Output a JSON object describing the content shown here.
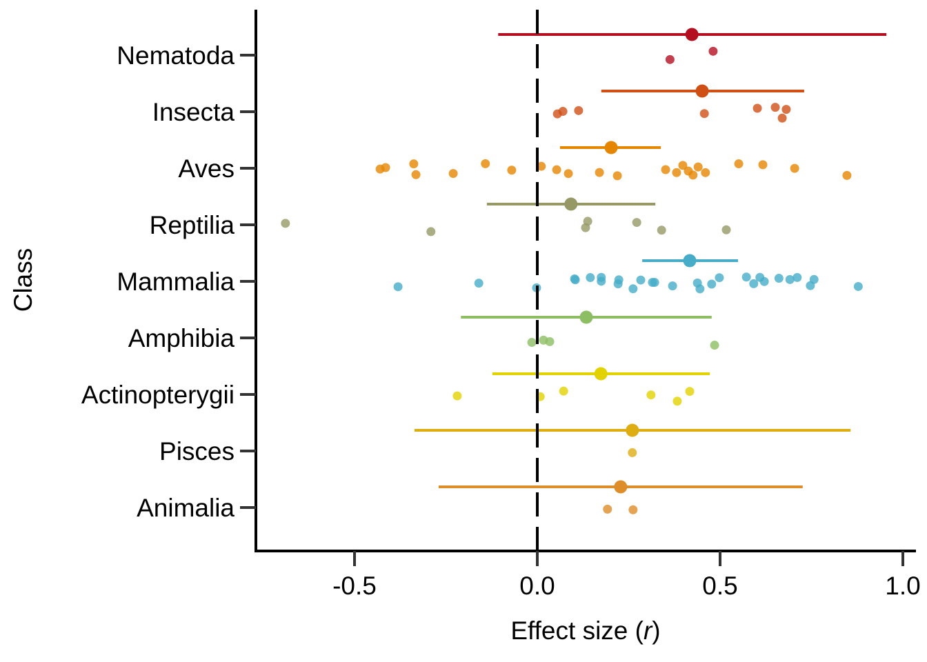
{
  "chart_data": {
    "type": "scatter",
    "subtype": "forest-plot-with-jittered-points",
    "title": "",
    "xlabel_prefix": "Effect size (",
    "xlabel_italic": "r",
    "xlabel_suffix": ")",
    "ylabel": "Class",
    "xlim": [
      -0.8,
      1.04
    ],
    "xticks": [
      -0.5,
      0.0,
      0.5,
      1.0
    ],
    "xtick_labels": [
      "-0.5",
      "0.0",
      "0.5",
      "1.0"
    ],
    "reference_line": {
      "x": 0.0,
      "style": "dashed",
      "color": "#000000"
    },
    "grid": false,
    "legend": "none",
    "categories": [
      "Nematoda",
      "Insecta",
      "Aves",
      "Reptilia",
      "Mammalia",
      "Amphibia",
      "Actinopterygii",
      "Pisces",
      "Animalia"
    ],
    "series": [
      {
        "name": "Nematoda",
        "color": "#B40F20",
        "mean": 0.423,
        "ci": [
          -0.107,
          0.955
        ],
        "points": [
          0.363,
          0.481
        ]
      },
      {
        "name": "Insecta",
        "color": "#CF4F15",
        "mean": 0.451,
        "ci": [
          0.175,
          0.73
        ],
        "points": [
          0.055,
          0.07,
          0.113,
          0.457,
          0.602,
          0.651,
          0.67,
          0.681
        ]
      },
      {
        "name": "Aves",
        "color": "#E58601",
        "mean": 0.202,
        "ci": [
          0.062,
          0.338
        ],
        "points": [
          -0.43,
          -0.415,
          -0.332,
          -0.338,
          -0.23,
          -0.142,
          -0.07,
          0.011,
          0.053,
          0.085,
          0.17,
          0.219,
          0.351,
          0.381,
          0.398,
          0.413,
          0.426,
          0.44,
          0.46,
          0.551,
          0.617,
          0.704,
          0.847
        ]
      },
      {
        "name": "Reptilia",
        "color": "#969866",
        "mean": 0.092,
        "ci": [
          -0.138,
          0.323
        ],
        "points": [
          -0.689,
          -0.291,
          0.132,
          0.138,
          0.272,
          0.34,
          0.517
        ]
      },
      {
        "name": "Mammalia",
        "color": "#46ACC8",
        "mean": 0.417,
        "ci": [
          0.287,
          0.549
        ],
        "points": [
          -0.381,
          -0.16,
          -0.002,
          0.104,
          0.102,
          0.145,
          0.175,
          0.175,
          0.221,
          0.223,
          0.262,
          0.283,
          0.315,
          0.321,
          0.37,
          0.438,
          0.445,
          0.477,
          0.498,
          0.572,
          0.592,
          0.609,
          0.621,
          0.661,
          0.691,
          0.711,
          0.747,
          0.757,
          0.878
        ]
      },
      {
        "name": "Amphibia",
        "color": "#8DBE63",
        "mean": 0.134,
        "ci": [
          -0.209,
          0.477
        ],
        "points": [
          -0.015,
          0.017,
          0.034,
          0.485
        ]
      },
      {
        "name": "Actinopterygii",
        "color": "#E2D200",
        "mean": 0.174,
        "ci": [
          -0.123,
          0.472
        ],
        "points": [
          -0.219,
          0.008,
          0.072,
          0.311,
          0.383,
          0.417
        ]
      },
      {
        "name": "Pisces",
        "color": "#DEAD14",
        "mean": 0.26,
        "ci": [
          -0.336,
          0.857
        ],
        "points": [
          0.26
        ]
      },
      {
        "name": "Animalia",
        "color": "#DD8D29",
        "mean": 0.228,
        "ci": [
          -0.27,
          0.726
        ],
        "points": [
          0.192,
          0.262
        ]
      }
    ]
  }
}
